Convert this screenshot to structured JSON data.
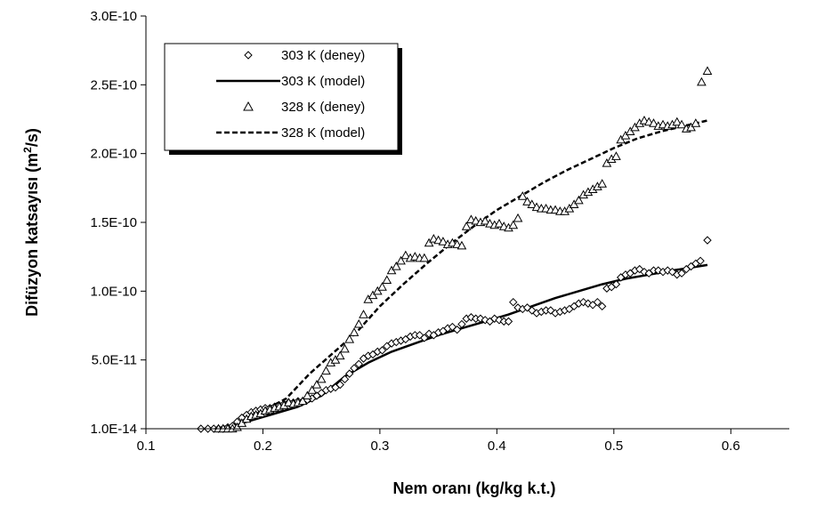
{
  "chart_data": {
    "type": "scatter",
    "xlabel": "Nem oranı (kg/kg k.t.)",
    "ylabel": {
      "main": "Difüzyon katsayısı (m",
      "sup": "2",
      "tail": "/s)"
    },
    "xlim": [
      0.1,
      0.65
    ],
    "x_ticks": [
      0.1,
      0.2,
      0.3,
      0.4,
      0.5,
      0.6
    ],
    "x_tick_labels": [
      "0.1",
      "0.2",
      "0.3",
      "0.4",
      "0.5",
      "0.6"
    ],
    "ylim": [
      0,
      3e-10
    ],
    "y_ticks": [
      0,
      5e-11,
      1e-10,
      1.5e-10,
      2e-10,
      2.5e-10,
      3e-10
    ],
    "y_tick_labels": [
      "1.0E-14",
      "5.0E-11",
      "1.0E-10",
      "1.5E-10",
      "2.0E-10",
      "2.5E-10",
      "3.0E-10"
    ],
    "grid": false,
    "legend_position": "top-left",
    "series": [
      {
        "name": "303 K (deney)",
        "kind": "markers",
        "marker": "diamond",
        "x": [
          0.147,
          0.153,
          0.158,
          0.162,
          0.166,
          0.17,
          0.174,
          0.178,
          0.182,
          0.186,
          0.19,
          0.194,
          0.198,
          0.202,
          0.206,
          0.21,
          0.214,
          0.218,
          0.222,
          0.226,
          0.23,
          0.234,
          0.238,
          0.242,
          0.246,
          0.25,
          0.254,
          0.258,
          0.262,
          0.266,
          0.27,
          0.274,
          0.278,
          0.282,
          0.286,
          0.29,
          0.294,
          0.298,
          0.302,
          0.306,
          0.31,
          0.314,
          0.318,
          0.322,
          0.326,
          0.33,
          0.334,
          0.338,
          0.342,
          0.346,
          0.35,
          0.354,
          0.358,
          0.362,
          0.366,
          0.37,
          0.374,
          0.378,
          0.382,
          0.386,
          0.39,
          0.394,
          0.398,
          0.402,
          0.406,
          0.41,
          0.414,
          0.418,
          0.422,
          0.426,
          0.43,
          0.434,
          0.438,
          0.442,
          0.446,
          0.45,
          0.454,
          0.458,
          0.462,
          0.466,
          0.47,
          0.474,
          0.478,
          0.482,
          0.486,
          0.49,
          0.494,
          0.498,
          0.502,
          0.506,
          0.51,
          0.514,
          0.518,
          0.522,
          0.526,
          0.53,
          0.534,
          0.538,
          0.542,
          0.546,
          0.55,
          0.554,
          0.558,
          0.562,
          0.566,
          0.57,
          0.574,
          0.58
        ],
        "y": [
          0,
          0,
          0,
          0,
          0,
          1e-12,
          2e-12,
          5e-12,
          8e-12,
          1e-11,
          1.2e-11,
          1.3e-11,
          1.4e-11,
          1.5e-11,
          1.5e-11,
          1.6e-11,
          1.7e-11,
          1.8e-11,
          1.9e-11,
          1.9e-11,
          2e-11,
          2e-11,
          2.1e-11,
          2.2e-11,
          2.4e-11,
          2.6e-11,
          2.8e-11,
          2.9e-11,
          3e-11,
          3.2e-11,
          3.6e-11,
          4e-11,
          4.4e-11,
          4.7e-11,
          5.1e-11,
          5.3e-11,
          5.4e-11,
          5.6e-11,
          5.7e-11,
          6e-11,
          6.2e-11,
          6.3e-11,
          6.4e-11,
          6.5e-11,
          6.7e-11,
          6.8e-11,
          6.8e-11,
          6.6e-11,
          6.9e-11,
          6.8e-11,
          7e-11,
          7.1e-11,
          7.3e-11,
          7.4e-11,
          7.2e-11,
          7.6e-11,
          8e-11,
          8.1e-11,
          8e-11,
          8e-11,
          7.9e-11,
          7.8e-11,
          8e-11,
          7.9e-11,
          7.8e-11,
          7.8e-11,
          9.2e-11,
          8.8e-11,
          8.7e-11,
          8.8e-11,
          8.6e-11,
          8.4e-11,
          8.5e-11,
          8.6e-11,
          8.6e-11,
          8.4e-11,
          8.5e-11,
          8.6e-11,
          8.7e-11,
          8.9e-11,
          9.1e-11,
          9.2e-11,
          9.1e-11,
          9e-11,
          9.2e-11,
          8.9e-11,
          1.02e-10,
          1.03e-10,
          1.05e-10,
          1.1e-10,
          1.12e-10,
          1.13e-10,
          1.15e-10,
          1.16e-10,
          1.14e-10,
          1.13e-10,
          1.15e-10,
          1.15e-10,
          1.14e-10,
          1.15e-10,
          1.14e-10,
          1.12e-10,
          1.13e-10,
          1.16e-10,
          1.18e-10,
          1.2e-10,
          1.22e-10,
          1.37e-10
        ]
      },
      {
        "name": "303 K (model)",
        "kind": "line",
        "style": "solid",
        "x": [
          0.15,
          0.17,
          0.19,
          0.21,
          0.23,
          0.25,
          0.27,
          0.29,
          0.31,
          0.33,
          0.35,
          0.37,
          0.39,
          0.41,
          0.43,
          0.45,
          0.47,
          0.49,
          0.51,
          0.53,
          0.55,
          0.58
        ],
        "y": [
          0,
          1e-12,
          6e-12,
          1.1e-11,
          1.6e-11,
          2.4e-11,
          3.8e-11,
          4.8e-11,
          5.6e-11,
          6.2e-11,
          6.8e-11,
          7.3e-11,
          7.8e-11,
          8.3e-11,
          8.9e-11,
          9.5e-11,
          1e-10,
          1.05e-10,
          1.09e-10,
          1.12e-10,
          1.15e-10,
          1.19e-10
        ]
      },
      {
        "name": "328 K (deney)",
        "kind": "markers",
        "marker": "triangle",
        "x": [
          0.162,
          0.166,
          0.17,
          0.174,
          0.178,
          0.182,
          0.186,
          0.19,
          0.194,
          0.198,
          0.202,
          0.206,
          0.21,
          0.214,
          0.218,
          0.222,
          0.226,
          0.23,
          0.234,
          0.238,
          0.242,
          0.246,
          0.25,
          0.254,
          0.258,
          0.262,
          0.266,
          0.27,
          0.274,
          0.278,
          0.282,
          0.286,
          0.29,
          0.294,
          0.298,
          0.302,
          0.306,
          0.31,
          0.314,
          0.318,
          0.322,
          0.326,
          0.33,
          0.334,
          0.338,
          0.342,
          0.346,
          0.35,
          0.354,
          0.358,
          0.362,
          0.366,
          0.37,
          0.374,
          0.378,
          0.382,
          0.386,
          0.39,
          0.394,
          0.398,
          0.402,
          0.406,
          0.41,
          0.414,
          0.418,
          0.422,
          0.426,
          0.43,
          0.434,
          0.438,
          0.442,
          0.446,
          0.45,
          0.454,
          0.458,
          0.462,
          0.466,
          0.47,
          0.474,
          0.478,
          0.482,
          0.486,
          0.49,
          0.494,
          0.498,
          0.502,
          0.506,
          0.51,
          0.514,
          0.518,
          0.522,
          0.526,
          0.53,
          0.534,
          0.538,
          0.542,
          0.546,
          0.55,
          0.554,
          0.558,
          0.562,
          0.566,
          0.57,
          0.575,
          0.58
        ],
        "y": [
          0,
          0,
          0,
          0,
          1e-12,
          4e-12,
          7e-12,
          9e-12,
          1e-11,
          1.1e-11,
          1.3e-11,
          1.4e-11,
          1.5e-11,
          1.6e-11,
          1.7e-11,
          1.9e-11,
          1.8e-11,
          1.9e-11,
          2e-11,
          2.4e-11,
          2.8e-11,
          3.2e-11,
          3.6e-11,
          4.2e-11,
          4.8e-11,
          5e-11,
          5.3e-11,
          5.8e-11,
          6.5e-11,
          7e-11,
          7.6e-11,
          8.3e-11,
          9.4e-11,
          9.7e-11,
          1e-10,
          1.03e-10,
          1.08e-10,
          1.15e-10,
          1.18e-10,
          1.22e-10,
          1.26e-10,
          1.24e-10,
          1.25e-10,
          1.24e-10,
          1.24e-10,
          1.35e-10,
          1.38e-10,
          1.37e-10,
          1.36e-10,
          1.34e-10,
          1.35e-10,
          1.34e-10,
          1.33e-10,
          1.47e-10,
          1.52e-10,
          1.51e-10,
          1.5e-10,
          1.51e-10,
          1.49e-10,
          1.48e-10,
          1.49e-10,
          1.47e-10,
          1.46e-10,
          1.48e-10,
          1.53e-10,
          1.69e-10,
          1.65e-10,
          1.63e-10,
          1.61e-10,
          1.6e-10,
          1.6e-10,
          1.59e-10,
          1.59e-10,
          1.58e-10,
          1.58e-10,
          1.6e-10,
          1.63e-10,
          1.66e-10,
          1.7e-10,
          1.72e-10,
          1.74e-10,
          1.76e-10,
          1.78e-10,
          1.93e-10,
          1.96e-10,
          1.98e-10,
          2.1e-10,
          2.13e-10,
          2.16e-10,
          2.19e-10,
          2.22e-10,
          2.24e-10,
          2.23e-10,
          2.22e-10,
          2.2e-10,
          2.21e-10,
          2.2e-10,
          2.21e-10,
          2.23e-10,
          2.21e-10,
          2.18e-10,
          2.19e-10,
          2.22e-10,
          2.52e-10,
          2.6e-10
        ]
      },
      {
        "name": "328 K (model)",
        "kind": "line",
        "style": "dashed",
        "x": [
          0.16,
          0.18,
          0.2,
          0.22,
          0.24,
          0.26,
          0.28,
          0.3,
          0.32,
          0.34,
          0.36,
          0.38,
          0.4,
          0.42,
          0.44,
          0.46,
          0.48,
          0.5,
          0.52,
          0.54,
          0.56,
          0.58
        ],
        "y": [
          0,
          4e-12,
          1.3e-11,
          2.2e-11,
          4e-11,
          5.5e-11,
          7e-11,
          8.9e-11,
          1.05e-10,
          1.2e-10,
          1.34e-10,
          1.47e-10,
          1.59e-10,
          1.69e-10,
          1.79e-10,
          1.88e-10,
          1.96e-10,
          2.04e-10,
          2.11e-10,
          2.16e-10,
          2.2e-10,
          2.24e-10
        ]
      }
    ]
  }
}
